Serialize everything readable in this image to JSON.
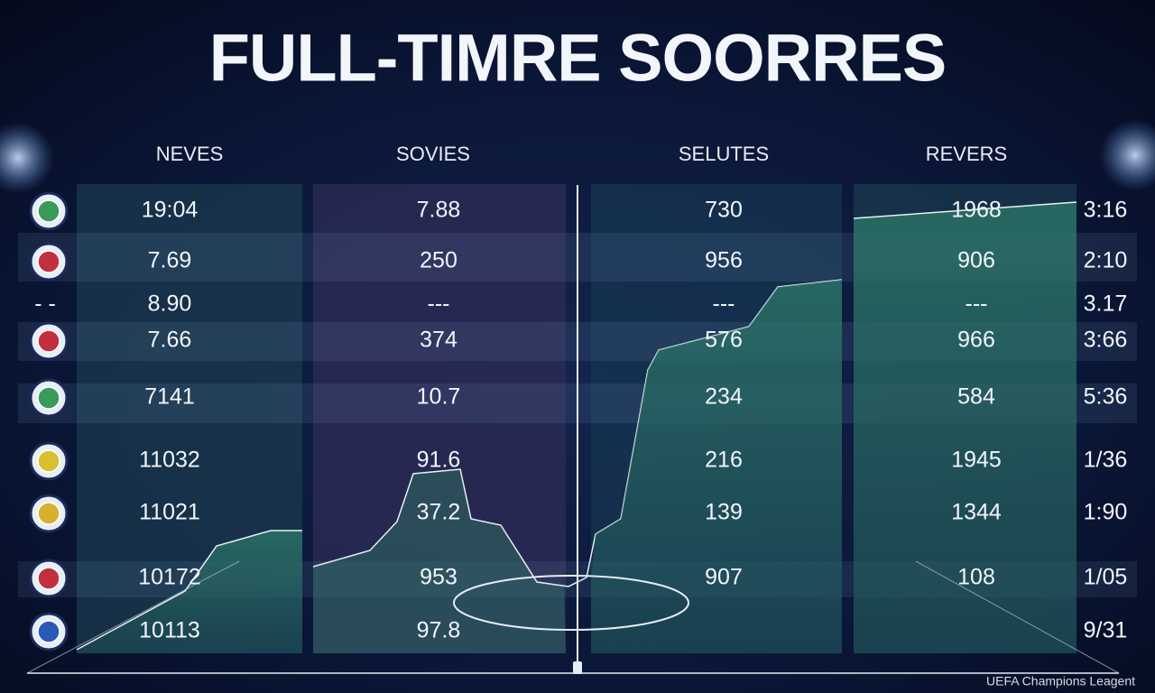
{
  "header": {
    "title": "FULL-TIMRE SOORRES"
  },
  "table": {
    "columns": [
      "NEVES",
      "SOVIES",
      "SELUTES",
      "REVERS"
    ],
    "rows": [
      {
        "marker": null,
        "cells": [
          "19:04",
          "7.88",
          "730",
          "1968",
          "3:16"
        ]
      },
      {
        "marker": null,
        "cells": [
          "7.69",
          "250",
          "956",
          "906",
          "2:10"
        ]
      },
      {
        "marker": "- -",
        "cells": [
          "8.90",
          "---",
          "---",
          "---",
          "3.17"
        ]
      },
      {
        "marker": null,
        "cells": [
          "7.66",
          "374",
          "576",
          "966",
          "3:66"
        ]
      },
      {
        "marker": null,
        "cells": [
          "7141",
          "10.7",
          "234",
          "584",
          "5:36"
        ]
      },
      {
        "marker": null,
        "cells": [
          "11032",
          "91.6",
          "216",
          "1945",
          "1/36"
        ]
      },
      {
        "marker": null,
        "cells": [
          "11021",
          "37.2",
          "139",
          "1344",
          "1:90"
        ]
      },
      {
        "marker": null,
        "cells": [
          "10172",
          "953",
          "907",
          "108",
          "1/05"
        ]
      },
      {
        "marker": null,
        "cells": [
          "10113",
          "97.8",
          null,
          null,
          "9/31"
        ]
      }
    ]
  },
  "footer": {
    "text": "UEFA Champions Leagent"
  }
}
